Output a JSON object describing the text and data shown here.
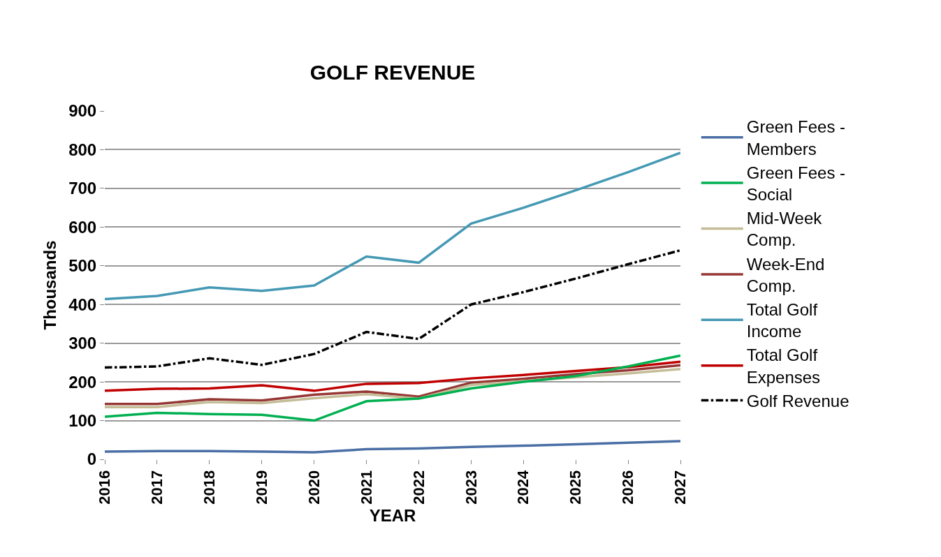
{
  "chart_data": {
    "type": "line",
    "title": "GOLF REVENUE",
    "xlabel": "YEAR",
    "ylabel": "Thousands",
    "categories": [
      "2016",
      "2017",
      "2018",
      "2019",
      "2020",
      "2021",
      "2022",
      "2023",
      "2024",
      "2025",
      "2026",
      "2027"
    ],
    "series": [
      {
        "name": "Green Fees - Members",
        "color": "#4a6fa5",
        "values": [
          20,
          21,
          21,
          20,
          18,
          26,
          28,
          32,
          35,
          39,
          43,
          47
        ]
      },
      {
        "name": "Green Fees - Social",
        "color": "#00b050",
        "values": [
          110,
          120,
          117,
          115,
          100,
          150,
          157,
          183,
          200,
          215,
          240,
          268
        ]
      },
      {
        "name": "Mid-Week Comp.",
        "color": "#c4bd97",
        "values": [
          135,
          135,
          148,
          145,
          158,
          168,
          157,
          192,
          202,
          212,
          222,
          233
        ]
      },
      {
        "name": "Week-End Comp.",
        "color": "#953735",
        "values": [
          143,
          143,
          155,
          152,
          167,
          175,
          162,
          198,
          208,
          220,
          230,
          243
        ]
      },
      {
        "name": "Total Golf Income",
        "color": "#4499b4",
        "values": [
          414,
          422,
          444,
          435,
          449,
          524,
          508,
          609,
          650,
          695,
          742,
          792
        ]
      },
      {
        "name": "Total Golf Expenses",
        "color": "#c00000",
        "values": [
          177,
          182,
          183,
          191,
          177,
          195,
          197,
          209,
          218,
          228,
          238,
          252
        ]
      },
      {
        "name": "Golf Revenue",
        "color": "#000000",
        "line_style": "dashdot",
        "values": [
          237,
          240,
          261,
          244,
          272,
          329,
          311,
          400,
          432,
          467,
          504,
          540
        ]
      }
    ],
    "ylim": [
      0,
      900
    ],
    "yticks": [
      0,
      100,
      200,
      300,
      400,
      500,
      600,
      700,
      800,
      900
    ],
    "grid": "y",
    "legend": "right",
    "marker": "none"
  }
}
